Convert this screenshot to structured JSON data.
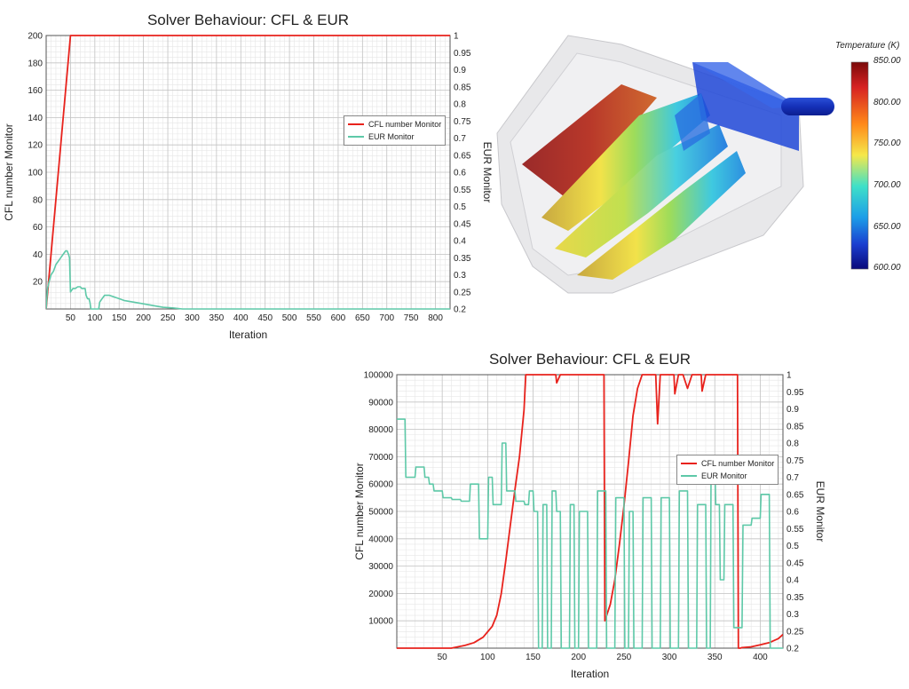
{
  "chart_data": [
    {
      "type": "line",
      "title": "Solver Behaviour: CFL & EUR",
      "xlabel": "Iteration",
      "ylabel": "CFL number Monitor",
      "y2label": "EUR Monitor",
      "xlim": [
        0,
        830
      ],
      "ylim": [
        0,
        200
      ],
      "y2lim": [
        0.2,
        1
      ],
      "xticks": [
        50,
        100,
        150,
        200,
        250,
        300,
        350,
        400,
        450,
        500,
        550,
        600,
        650,
        700,
        750,
        800
      ],
      "yticks": [
        20,
        40,
        60,
        80,
        100,
        120,
        140,
        160,
        180,
        200
      ],
      "y2ticks": [
        0.2,
        0.25,
        0.3,
        0.35,
        0.4,
        0.45,
        0.5,
        0.55,
        0.6,
        0.65,
        0.7,
        0.75,
        0.8,
        0.85,
        0.9,
        0.95,
        1
      ],
      "grid": true,
      "legend_position": "right",
      "colors": {
        "cfl": "#e8221c",
        "eur": "#5ec9a8"
      },
      "series": [
        {
          "name": "CFL number Monitor",
          "axis": "left",
          "x": [
            0,
            50,
            52,
            830
          ],
          "y": [
            0,
            200,
            200,
            200
          ]
        },
        {
          "name": "EUR Monitor",
          "axis": "right",
          "x": [
            0,
            3,
            6,
            10,
            15,
            20,
            25,
            30,
            35,
            40,
            43,
            46,
            48,
            50,
            55,
            60,
            65,
            70,
            73,
            76,
            80,
            82,
            85,
            88,
            90,
            92,
            95,
            100,
            102,
            108,
            110,
            115,
            120,
            125,
            130,
            140,
            150,
            160,
            180,
            200,
            220,
            240,
            260,
            280,
            300,
            320,
            340,
            830
          ],
          "y": [
            0.2,
            0.26,
            0.28,
            0.3,
            0.31,
            0.33,
            0.34,
            0.35,
            0.36,
            0.37,
            0.37,
            0.36,
            0.35,
            0.25,
            0.26,
            0.26,
            0.265,
            0.265,
            0.26,
            0.26,
            0.26,
            0.24,
            0.23,
            0.23,
            0.22,
            0.2,
            0.2,
            0.2,
            0.2,
            0.2,
            0.22,
            0.23,
            0.24,
            0.24,
            0.24,
            0.235,
            0.23,
            0.225,
            0.22,
            0.215,
            0.21,
            0.205,
            0.203,
            0.2,
            0.2,
            0.2,
            0.2,
            0.2
          ]
        }
      ]
    },
    {
      "type": "line",
      "title": "Solver Behaviour: CFL & EUR",
      "xlabel": "Iteration",
      "ylabel": "CFL number Monitor",
      "y2label": "EUR Monitor",
      "xlim": [
        0,
        425
      ],
      "ylim": [
        0,
        100000
      ],
      "y2lim": [
        0.2,
        1
      ],
      "xticks": [
        50,
        100,
        150,
        200,
        250,
        300,
        350,
        400
      ],
      "yticks": [
        10000,
        20000,
        30000,
        40000,
        50000,
        60000,
        70000,
        80000,
        90000,
        100000
      ],
      "y2ticks": [
        0.2,
        0.25,
        0.3,
        0.35,
        0.4,
        0.45,
        0.5,
        0.55,
        0.6,
        0.65,
        0.7,
        0.75,
        0.8,
        0.85,
        0.9,
        0.95,
        1
      ],
      "grid": true,
      "legend_position": "right",
      "colors": {
        "cfl": "#e8221c",
        "eur": "#5ec9a8"
      },
      "series": [
        {
          "name": "CFL number Monitor",
          "axis": "left",
          "x": [
            0,
            60,
            75,
            85,
            95,
            100,
            105,
            110,
            115,
            120,
            125,
            130,
            135,
            138,
            140,
            142,
            145,
            150,
            160,
            170,
            175,
            176,
            180,
            185,
            190,
            200,
            210,
            220,
            225,
            228,
            229,
            230,
            235,
            240,
            245,
            250,
            255,
            260,
            265,
            270,
            275,
            280,
            285,
            287,
            290,
            295,
            300,
            305,
            306,
            310,
            315,
            320,
            325,
            330,
            335,
            336,
            340,
            345,
            350,
            355,
            360,
            370,
            374,
            375,
            376,
            378,
            380,
            390,
            400,
            410,
            420,
            425
          ],
          "y": [
            0,
            0,
            1000,
            2000,
            4000,
            6000,
            8000,
            12000,
            20000,
            32000,
            45000,
            58000,
            70000,
            80000,
            87000,
            100000,
            100000,
            100000,
            100000,
            100000,
            100000,
            97000,
            100000,
            100000,
            100000,
            100000,
            100000,
            100000,
            100000,
            100000,
            10000,
            11000,
            16000,
            25000,
            38000,
            52000,
            68000,
            85000,
            95000,
            100000,
            100000,
            100000,
            100000,
            82000,
            100000,
            100000,
            100000,
            100000,
            93000,
            100000,
            100000,
            95000,
            100000,
            100000,
            100000,
            94000,
            100000,
            100000,
            100000,
            100000,
            100000,
            100000,
            100000,
            100000,
            0,
            0,
            200,
            500,
            1200,
            2000,
            3500,
            5000
          ]
        },
        {
          "name": "EUR Monitor",
          "axis": "right",
          "x": [
            0,
            5,
            9,
            10,
            20,
            21,
            30,
            31,
            35,
            36,
            40,
            41,
            50,
            51,
            60,
            61,
            70,
            71,
            80,
            81,
            90,
            91,
            95,
            96,
            100,
            101,
            105,
            106,
            110,
            111,
            115,
            116,
            120,
            121,
            130,
            131,
            140,
            141,
            145,
            146,
            150,
            151,
            155,
            156,
            160,
            161,
            165,
            166,
            170,
            171,
            175,
            176,
            180,
            181,
            190,
            191,
            195,
            196,
            200,
            201,
            210,
            211,
            220,
            221,
            230,
            231,
            240,
            241,
            250,
            251,
            255,
            256,
            260,
            261,
            270,
            271,
            280,
            281,
            290,
            291,
            300,
            301,
            310,
            311,
            320,
            321,
            330,
            331,
            340,
            341,
            345,
            346,
            350,
            351,
            355,
            356,
            360,
            361,
            370,
            371,
            380,
            381,
            390,
            391,
            400,
            401,
            410,
            411,
            420,
            425
          ],
          "y": [
            0.87,
            0.87,
            0.87,
            0.7,
            0.7,
            0.73,
            0.73,
            0.7,
            0.7,
            0.68,
            0.68,
            0.66,
            0.66,
            0.64,
            0.64,
            0.635,
            0.635,
            0.63,
            0.63,
            0.68,
            0.68,
            0.52,
            0.52,
            0.52,
            0.52,
            0.7,
            0.7,
            0.62,
            0.62,
            0.62,
            0.62,
            0.8,
            0.8,
            0.66,
            0.66,
            0.63,
            0.63,
            0.62,
            0.62,
            0.66,
            0.66,
            0.6,
            0.6,
            0.2,
            0.2,
            0.62,
            0.62,
            0.2,
            0.2,
            0.66,
            0.66,
            0.6,
            0.6,
            0.2,
            0.2,
            0.62,
            0.62,
            0.2,
            0.2,
            0.6,
            0.6,
            0.2,
            0.2,
            0.66,
            0.66,
            0.2,
            0.2,
            0.64,
            0.64,
            0.2,
            0.2,
            0.6,
            0.6,
            0.2,
            0.2,
            0.64,
            0.64,
            0.2,
            0.2,
            0.64,
            0.64,
            0.2,
            0.2,
            0.66,
            0.66,
            0.2,
            0.2,
            0.62,
            0.62,
            0.2,
            0.2,
            0.76,
            0.76,
            0.62,
            0.62,
            0.4,
            0.4,
            0.62,
            0.62,
            0.26,
            0.26,
            0.56,
            0.56,
            0.58,
            0.58,
            0.65,
            0.65,
            0.2,
            0.2,
            0.2
          ]
        }
      ]
    }
  ],
  "figure": {
    "colorbar": {
      "title": "Temperature (K)",
      "ticks": [
        "850.00",
        "800.00",
        "750.00",
        "700.00",
        "650.00",
        "600.00"
      ]
    },
    "render_description_icon": "heat-exchanger-temperature-render"
  }
}
